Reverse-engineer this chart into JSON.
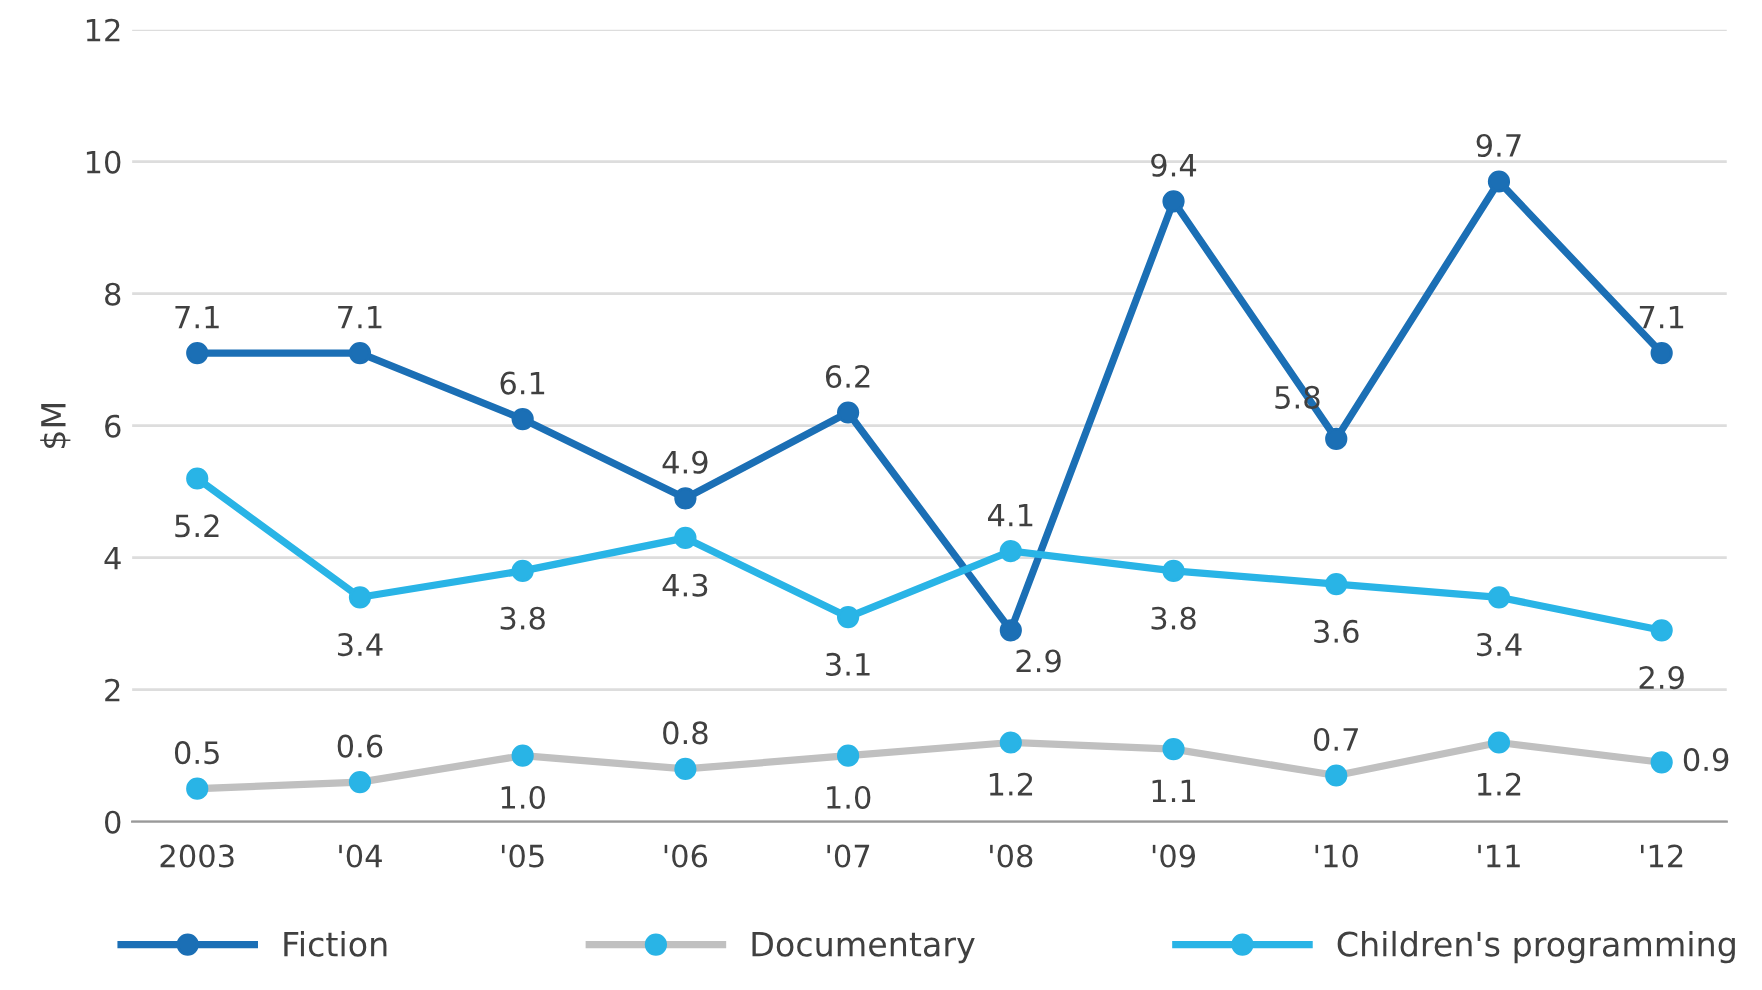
{
  "chart_data": {
    "type": "line",
    "ylabel": "$M",
    "categories": [
      "2003",
      "'04",
      "'05",
      "'06",
      "'07",
      "'08",
      "'09",
      "'10",
      "'11",
      "'12"
    ],
    "series": [
      {
        "name": "Fiction",
        "color": "#1b6fb5",
        "values": [
          7.1,
          7.1,
          6.1,
          4.9,
          6.2,
          2.9,
          9.4,
          5.8,
          9.7,
          7.1
        ]
      },
      {
        "name": "Documentary",
        "color": "#c0c0c0",
        "colors": [
          "#29b4e6",
          "#29b4e6",
          "#29b4e6",
          "#29b4e6",
          "#29b4e6",
          "#29b4e6",
          "#29b4e6",
          "#29b4e6",
          "#29b4e6",
          "#29b4e6"
        ],
        "values": [
          0.5,
          0.6,
          1.0,
          0.8,
          1.0,
          1.2,
          1.1,
          0.7,
          1.2,
          0.9
        ],
        "value_labels": [
          "0.5",
          "0.6",
          "1.0",
          "0.8",
          "1.0",
          "1.2",
          "1.1",
          "0.7",
          "1.2",
          "0.9"
        ]
      },
      {
        "name": "Children's programming",
        "color": "#29b4e6",
        "values": [
          5.2,
          3.4,
          3.8,
          4.3,
          3.1,
          4.1,
          3.8,
          3.6,
          3.4,
          2.9
        ]
      }
    ],
    "ylim": [
      0,
      12
    ],
    "yticks": [
      0,
      2,
      4,
      6,
      8,
      10,
      12
    ],
    "grid": "y",
    "legend": "bottom",
    "marker": "circle",
    "line_style": "solid",
    "data_labels": true
  }
}
